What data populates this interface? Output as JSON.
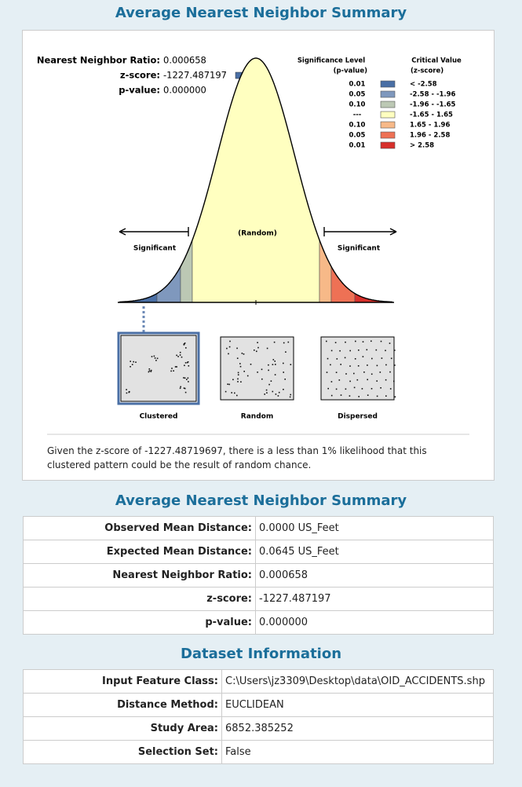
{
  "report": {
    "title": "Average Nearest Neighbor Summary",
    "stats": [
      {
        "label": "Nearest Neighbor Ratio:",
        "value": "0.000658"
      },
      {
        "label": "z-score:",
        "value": "-1227.487197"
      },
      {
        "label": "p-value:",
        "value": "0.000000"
      }
    ],
    "legend": {
      "heading_left": [
        "Significance Level",
        "(p-value)"
      ],
      "heading_right": [
        "Critical Value",
        "(z-score)"
      ],
      "rows": [
        {
          "p": "0.01",
          "range": "< -2.58",
          "color": "#4a6fa5"
        },
        {
          "p": "0.05",
          "range": "-2.58 - -1.96",
          "color": "#7f98bd"
        },
        {
          "p": "0.10",
          "range": "-1.96 - -1.65",
          "color": "#bcc8b4"
        },
        {
          "p": "---",
          "range": "-1.65 - 1.65",
          "color": "#ffffc0"
        },
        {
          "p": "0.10",
          "range": "1.65 - 1.96",
          "color": "#f7b988"
        },
        {
          "p": "0.05",
          "range": "1.96 - 2.58",
          "color": "#ee7155"
        },
        {
          "p": "0.01",
          "range": "> 2.58",
          "color": "#d7302b"
        }
      ]
    },
    "curve_labels": {
      "center": "(Random)",
      "left": "Significant",
      "right": "Significant"
    },
    "patterns": [
      "Clustered",
      "Random",
      "Dispersed"
    ],
    "message": "Given the z-score of -1227.48719697, there is a less than 1% likelihood that this clustered pattern could be the result of random chance."
  },
  "summary_table": {
    "title": "Average Nearest Neighbor Summary",
    "rows": [
      [
        "Observed Mean Distance:",
        "0.0000 US_Feet"
      ],
      [
        "Expected Mean Distance:",
        "0.0645 US_Feet"
      ],
      [
        "Nearest Neighbor Ratio:",
        "0.000658"
      ],
      [
        "z-score:",
        "-1227.487197"
      ],
      [
        "p-value:",
        "0.000000"
      ]
    ]
  },
  "dataset_table": {
    "title": "Dataset Information",
    "rows": [
      [
        "Input Feature Class:",
        "C:\\Users\\jz3309\\Desktop\\data\\OID_ACCIDENTS.shp"
      ],
      [
        "Distance Method:",
        "EUCLIDEAN"
      ],
      [
        "Study Area:",
        "6852.385252"
      ],
      [
        "Selection Set:",
        "False"
      ]
    ]
  }
}
